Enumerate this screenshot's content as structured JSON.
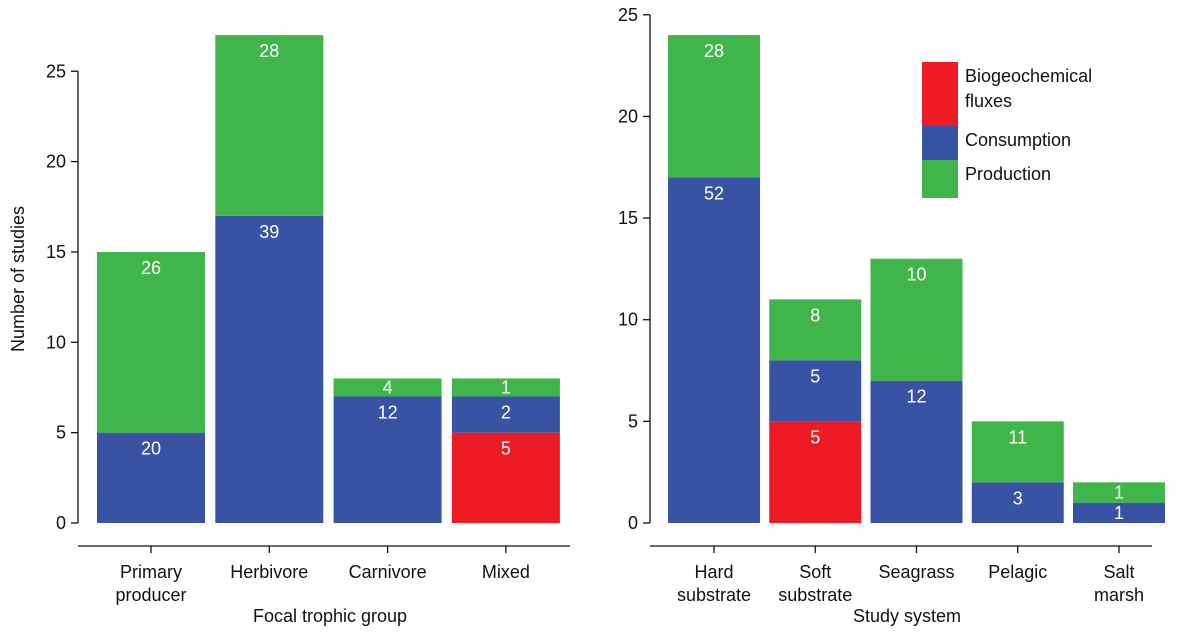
{
  "colors": {
    "Biogeochemical fluxes": "#ed1c24",
    "Consumption": "#3953a4",
    "Production": "#3fb54a",
    "axis": "#111111",
    "data_label": "#ffffff"
  },
  "chart_data": [
    {
      "type": "bar",
      "stacked": true,
      "xlabel": "Focal trophic group",
      "ylabel": "Number of studies",
      "ylim": [
        0,
        27.5
      ],
      "yticks": [
        0,
        5,
        10,
        15,
        20,
        25
      ],
      "categories": [
        "Primary\nproducer",
        "Herbivore",
        "Carnivore",
        "Mixed"
      ],
      "series": [
        {
          "name": "Biogeochemical fluxes",
          "values": [
            0,
            0,
            0,
            5
          ],
          "labels": [
            "",
            "",
            "",
            "5"
          ]
        },
        {
          "name": "Consumption",
          "values": [
            5,
            17,
            7,
            2
          ],
          "labels": [
            "20",
            "39",
            "12",
            "2"
          ]
        },
        {
          "name": "Production",
          "values": [
            10,
            10,
            1,
            1
          ],
          "labels": [
            "26",
            "28",
            "4",
            "1"
          ]
        }
      ],
      "legend": false
    },
    {
      "type": "bar",
      "stacked": true,
      "xlabel": "Study system",
      "ylabel": "",
      "ylim": [
        0,
        25
      ],
      "yticks": [
        0,
        5,
        10,
        15,
        20,
        25
      ],
      "categories": [
        "Hard\nsubstrate",
        "Soft\nsubstrate",
        "Seagrass",
        "Pelagic",
        "Salt\nmarsh"
      ],
      "series": [
        {
          "name": "Biogeochemical fluxes",
          "values": [
            0,
            5,
            0,
            0,
            0
          ],
          "labels": [
            "",
            "5",
            "",
            "",
            ""
          ]
        },
        {
          "name": "Consumption",
          "values": [
            17,
            3,
            7,
            2,
            1
          ],
          "labels": [
            "52",
            "5",
            "12",
            "3",
            "1"
          ]
        },
        {
          "name": "Production",
          "values": [
            7,
            3,
            6,
            3,
            1
          ],
          "labels": [
            "28",
            "8",
            "10",
            "11",
            "1"
          ]
        }
      ],
      "legend": true,
      "legend_position": "top-right",
      "legend_entries": [
        "Biogeochemical\nfluxes",
        "Consumption",
        "Production"
      ]
    }
  ]
}
